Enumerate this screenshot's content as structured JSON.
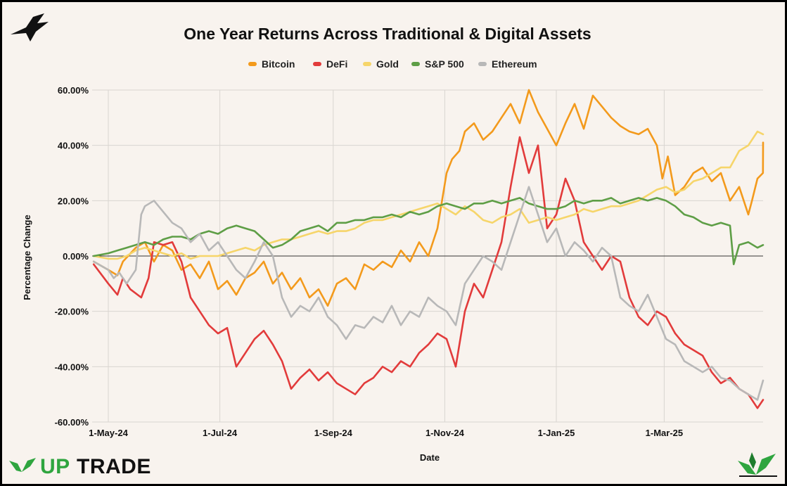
{
  "chart_data": {
    "type": "line",
    "title": "One Year Returns Across Traditional & Digital Assets",
    "xlabel": "Date",
    "ylabel": "Percentage Change",
    "ylim": [
      -60,
      60
    ],
    "yticks": [
      60,
      40,
      20,
      0,
      -20,
      -40,
      -60
    ],
    "ytick_labels": [
      "60.00%",
      "40.00%",
      "20.00%",
      "0.00%",
      "-20.00%",
      "-40.00%",
      "-60.00%"
    ],
    "xlim_days": [
      0,
      360
    ],
    "xticks": [
      {
        "label": "1-May-24",
        "day": 0
      },
      {
        "label": "1-Jul-24",
        "day": 61
      },
      {
        "label": "1-Sep-24",
        "day": 123
      },
      {
        "label": "1-Nov-24",
        "day": 184
      },
      {
        "label": "1-Jan-25",
        "day": 245
      },
      {
        "label": "1-Mar-25",
        "day": 304
      }
    ],
    "legend_position": "top",
    "grid": true,
    "series": [
      {
        "name": "Bitcoin",
        "color": "#f39a1c",
        "x": [
          -8,
          0,
          5,
          8,
          15,
          20,
          25,
          30,
          35,
          40,
          45,
          50,
          55,
          60,
          65,
          70,
          75,
          80,
          85,
          90,
          95,
          100,
          105,
          110,
          115,
          120,
          125,
          130,
          135,
          140,
          145,
          150,
          155,
          160,
          165,
          170,
          175,
          180,
          185,
          188,
          192,
          195,
          200,
          205,
          210,
          215,
          220,
          225,
          230,
          235,
          240,
          245,
          250,
          255,
          260,
          265,
          270,
          275,
          280,
          285,
          290,
          295,
          300,
          303,
          306,
          310,
          315,
          320,
          325,
          330,
          335,
          340,
          345,
          350,
          352,
          355,
          358,
          360
        ],
        "values": [
          -2,
          -5,
          -7,
          -2,
          3,
          5,
          -2,
          4,
          2,
          -5,
          -3,
          -8,
          -2,
          -12,
          -9,
          -14,
          -8,
          -6,
          -2,
          -10,
          -6,
          -12,
          -8,
          -15,
          -12,
          -18,
          -10,
          -8,
          -12,
          -3,
          -5,
          -2,
          -4,
          2,
          -2,
          5,
          0,
          10,
          30,
          35,
          38,
          45,
          48,
          42,
          45,
          50,
          55,
          48,
          60,
          52,
          46,
          40,
          48,
          55,
          46,
          58,
          54,
          50,
          47,
          45,
          44,
          46,
          40,
          28,
          36,
          22,
          25,
          30,
          32,
          27,
          30,
          20,
          25,
          15,
          20,
          28,
          30,
          41
        ]
      },
      {
        "name": "DeFi",
        "color": "#e23b3b",
        "x": [
          -8,
          0,
          5,
          8,
          12,
          18,
          22,
          25,
          30,
          35,
          40,
          45,
          50,
          55,
          60,
          65,
          70,
          75,
          80,
          85,
          90,
          95,
          100,
          105,
          110,
          115,
          120,
          125,
          130,
          135,
          140,
          145,
          150,
          155,
          160,
          165,
          170,
          175,
          180,
          185,
          190,
          195,
          200,
          205,
          210,
          215,
          220,
          225,
          230,
          235,
          240,
          245,
          250,
          255,
          260,
          265,
          270,
          275,
          280,
          285,
          290,
          295,
          300,
          305,
          310,
          315,
          320,
          325,
          330,
          335,
          340,
          345,
          350,
          355,
          360
        ],
        "values": [
          -3,
          -10,
          -14,
          -8,
          -12,
          -15,
          -8,
          5,
          4,
          5,
          -2,
          -15,
          -20,
          -25,
          -28,
          -26,
          -40,
          -35,
          -30,
          -27,
          -32,
          -38,
          -48,
          -44,
          -41,
          -45,
          -42,
          -46,
          -48,
          -50,
          -46,
          -44,
          -40,
          -42,
          -38,
          -40,
          -35,
          -32,
          -28,
          -30,
          -40,
          -20,
          -10,
          -15,
          -5,
          5,
          25,
          43,
          30,
          40,
          10,
          15,
          28,
          20,
          5,
          0,
          -5,
          0,
          -2,
          -15,
          -22,
          -25,
          -20,
          -22,
          -28,
          -32,
          -34,
          -36,
          -42,
          -46,
          -44,
          -48,
          -50,
          -55,
          -52
        ]
      },
      {
        "name": "Gold",
        "color": "#f6d56a",
        "x": [
          -8,
          0,
          5,
          10,
          15,
          20,
          25,
          30,
          35,
          40,
          45,
          50,
          55,
          60,
          65,
          70,
          75,
          80,
          85,
          90,
          95,
          100,
          105,
          110,
          115,
          120,
          125,
          130,
          135,
          140,
          145,
          150,
          155,
          160,
          165,
          170,
          175,
          180,
          185,
          190,
          195,
          200,
          205,
          210,
          215,
          220,
          225,
          230,
          235,
          240,
          245,
          250,
          255,
          260,
          265,
          270,
          275,
          280,
          285,
          290,
          295,
          300,
          305,
          310,
          315,
          320,
          325,
          330,
          335,
          340,
          345,
          350,
          355,
          360
        ],
        "values": [
          0,
          -1,
          -1,
          0,
          2,
          3,
          2,
          1,
          0,
          1,
          -1,
          0,
          0,
          0,
          1,
          2,
          3,
          2,
          4,
          5,
          6,
          6,
          7,
          8,
          9,
          8,
          9,
          9,
          10,
          12,
          13,
          13,
          14,
          15,
          16,
          17,
          18,
          19,
          17,
          15,
          18,
          16,
          13,
          12,
          14,
          15,
          17,
          12,
          13,
          14,
          13,
          14,
          15,
          17,
          16,
          17,
          18,
          18,
          19,
          20,
          22,
          24,
          25,
          23,
          24,
          27,
          28,
          30,
          32,
          32,
          38,
          40,
          45,
          44
        ]
      },
      {
        "name": "S&P 500",
        "color": "#5e9e46",
        "x": [
          -8,
          0,
          5,
          10,
          15,
          20,
          25,
          30,
          35,
          40,
          45,
          50,
          55,
          60,
          65,
          70,
          75,
          80,
          85,
          90,
          95,
          100,
          105,
          110,
          115,
          120,
          125,
          130,
          135,
          140,
          145,
          150,
          155,
          160,
          165,
          170,
          175,
          180,
          185,
          190,
          195,
          200,
          205,
          210,
          215,
          220,
          225,
          230,
          235,
          240,
          245,
          250,
          255,
          260,
          265,
          270,
          275,
          280,
          285,
          290,
          295,
          300,
          305,
          310,
          315,
          320,
          325,
          330,
          335,
          340,
          342,
          345,
          350,
          355,
          360
        ],
        "values": [
          0,
          1,
          2,
          3,
          4,
          5,
          4,
          6,
          7,
          7,
          6,
          8,
          9,
          8,
          10,
          11,
          10,
          9,
          6,
          3,
          4,
          6,
          9,
          10,
          11,
          9,
          12,
          12,
          13,
          13,
          14,
          14,
          15,
          14,
          16,
          15,
          16,
          18,
          19,
          18,
          17,
          19,
          19,
          20,
          19,
          20,
          21,
          19,
          18,
          17,
          17,
          18,
          20,
          19,
          20,
          20,
          21,
          19,
          20,
          21,
          20,
          21,
          20,
          18,
          15,
          14,
          12,
          11,
          12,
          11,
          -3,
          4,
          5,
          3,
          4
        ]
      },
      {
        "name": "Ethereum",
        "color": "#b8b8b8",
        "x": [
          -8,
          0,
          3,
          6,
          10,
          15,
          18,
          20,
          25,
          30,
          35,
          40,
          45,
          50,
          55,
          60,
          65,
          70,
          75,
          80,
          85,
          90,
          95,
          100,
          105,
          110,
          115,
          120,
          125,
          130,
          135,
          140,
          145,
          150,
          155,
          160,
          165,
          170,
          175,
          180,
          185,
          190,
          195,
          200,
          205,
          210,
          215,
          220,
          225,
          230,
          235,
          240,
          245,
          250,
          255,
          260,
          265,
          270,
          275,
          280,
          285,
          290,
          295,
          300,
          305,
          310,
          315,
          320,
          325,
          330,
          335,
          340,
          345,
          350,
          355,
          360
        ],
        "values": [
          -2,
          -5,
          -8,
          -6,
          -10,
          -5,
          15,
          18,
          20,
          16,
          12,
          10,
          5,
          8,
          2,
          5,
          0,
          -5,
          -8,
          -2,
          5,
          0,
          -15,
          -22,
          -18,
          -20,
          -15,
          -22,
          -25,
          -30,
          -25,
          -26,
          -22,
          -24,
          -18,
          -25,
          -20,
          -22,
          -15,
          -18,
          -20,
          -25,
          -10,
          -5,
          0,
          -2,
          -5,
          5,
          15,
          25,
          15,
          5,
          10,
          0,
          5,
          2,
          -2,
          3,
          0,
          -15,
          -18,
          -20,
          -14,
          -22,
          -30,
          -32,
          -38,
          -40,
          -42,
          -40,
          -44,
          -45,
          -48,
          -50,
          -52,
          -45
        ]
      }
    ]
  }
}
